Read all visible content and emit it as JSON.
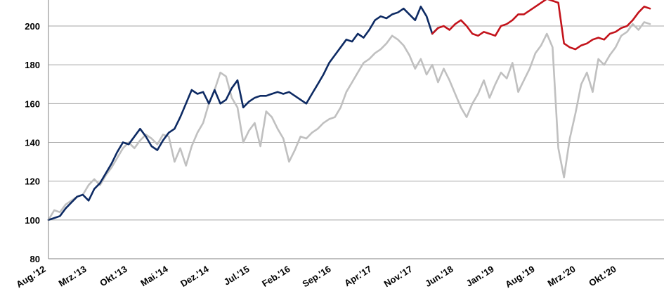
{
  "chart_data": {
    "type": "line",
    "ylim": [
      80,
      210
    ],
    "y_ticks": [
      80,
      100,
      120,
      140,
      160,
      180,
      200
    ],
    "y_tick_labels": [
      "80",
      "100",
      "120",
      "140",
      "160",
      "180",
      "200"
    ],
    "x_tick_labels": [
      "Aug.'12",
      "Mrz.'13",
      "Okt.'13",
      "Mai.'14",
      "Dez.'14",
      "Jul.'15",
      "Feb.'16",
      "Sep.'16",
      "Apr.'17",
      "Nov.'17",
      "Jun.'18",
      "Jan.'19",
      "Aug.'19",
      "Mrz.'20",
      "Okt.'20"
    ],
    "grid": true,
    "legend": "none",
    "colors": {
      "navy": "#0d2a63",
      "red": "#c3131b",
      "gray": "#c0c0c0",
      "gridline": "#a6a6a6"
    },
    "series": [
      {
        "color": "#c0c0c0",
        "x": [
          0,
          1,
          2,
          3,
          4,
          5,
          6,
          7,
          8,
          9,
          10,
          11,
          12,
          13,
          14,
          15,
          16,
          17,
          18,
          19,
          20,
          21,
          22,
          23,
          24,
          25,
          26,
          27,
          28,
          29,
          30,
          31,
          32,
          33,
          34,
          35,
          36,
          37,
          38,
          39,
          40,
          41,
          42,
          43,
          44,
          45,
          46,
          47,
          48,
          49,
          50,
          51,
          52,
          53,
          54,
          55,
          56,
          57,
          58,
          59,
          60,
          61,
          62,
          63,
          64,
          65,
          66,
          67,
          68,
          69,
          70,
          71,
          72,
          73,
          74,
          75,
          76,
          77,
          78,
          79,
          80,
          81,
          82,
          83,
          84,
          85,
          86,
          87,
          88,
          89,
          90,
          91,
          92,
          93,
          94,
          95,
          96,
          97,
          98,
          99,
          100,
          101,
          102,
          103,
          104,
          105
        ],
        "values": [
          100,
          105,
          104,
          108,
          110,
          112,
          113,
          118,
          121,
          118,
          123,
          127,
          132,
          137,
          140,
          137,
          141,
          144,
          142,
          139,
          144,
          143,
          130,
          137,
          128,
          138,
          145,
          150,
          160,
          167,
          176,
          174,
          163,
          158,
          140,
          146,
          150,
          138,
          156,
          153,
          147,
          142,
          130,
          136,
          143,
          142,
          145,
          147,
          150,
          152,
          153,
          158,
          166,
          171,
          176,
          181,
          183,
          186,
          188,
          191,
          195,
          193,
          190,
          185,
          178,
          183,
          175,
          180,
          171,
          178,
          172,
          165,
          158,
          153,
          160,
          165,
          172,
          163,
          170,
          176,
          173,
          181,
          166,
          172,
          178,
          186,
          190,
          196,
          189,
          137,
          122,
          142,
          155,
          170,
          176,
          166,
          183,
          180,
          185,
          189,
          195,
          197,
          201,
          198,
          202,
          201
        ]
      },
      {
        "color": "#0d2a63",
        "x": [
          0,
          1,
          2,
          3,
          4,
          5,
          6,
          7,
          8,
          9,
          10,
          11,
          12,
          13,
          14,
          15,
          16,
          17,
          18,
          19,
          20,
          21,
          22,
          23,
          24,
          25,
          26,
          27,
          28,
          29,
          30,
          31,
          32,
          33,
          34,
          35,
          36,
          37,
          38,
          39,
          40,
          41,
          42,
          43,
          44,
          45,
          46,
          47,
          48,
          49,
          50,
          51,
          52,
          53,
          54,
          55,
          56,
          57,
          58,
          59,
          60,
          61,
          62,
          63,
          64,
          65,
          66,
          67,
          68
        ],
        "values": [
          100,
          101,
          102,
          106,
          109,
          112,
          113,
          110,
          116,
          119,
          124,
          129,
          135,
          140,
          139,
          143,
          147,
          143,
          138,
          136,
          141,
          145,
          147,
          153,
          160,
          167,
          165,
          166,
          160,
          167,
          160,
          162,
          168,
          172,
          158,
          161,
          163,
          164,
          164,
          165,
          166,
          165,
          166,
          164,
          162,
          160,
          165,
          170,
          175,
          181,
          185,
          189,
          193,
          192,
          196,
          194,
          198,
          203,
          205,
          204,
          206,
          207,
          209,
          206,
          203,
          210,
          205,
          196,
          199
        ]
      },
      {
        "color": "#c3131b",
        "x": [
          67,
          68,
          69,
          70,
          71,
          72,
          73,
          74,
          75,
          76,
          77,
          78,
          79,
          80,
          81,
          82,
          83,
          84,
          85,
          86,
          87,
          88,
          89,
          90,
          91,
          92,
          93,
          94,
          95,
          96,
          97,
          98,
          99,
          100,
          101,
          102,
          103,
          104,
          105
        ],
        "values": [
          196,
          199,
          200,
          198,
          201,
          203,
          200,
          196,
          195,
          197,
          196,
          195,
          200,
          201,
          203,
          206,
          206,
          208,
          210,
          212,
          214,
          213,
          212,
          191,
          189,
          188,
          190,
          191,
          193,
          194,
          193,
          196,
          197,
          199,
          200,
          203,
          207,
          210,
          209
        ]
      }
    ]
  }
}
